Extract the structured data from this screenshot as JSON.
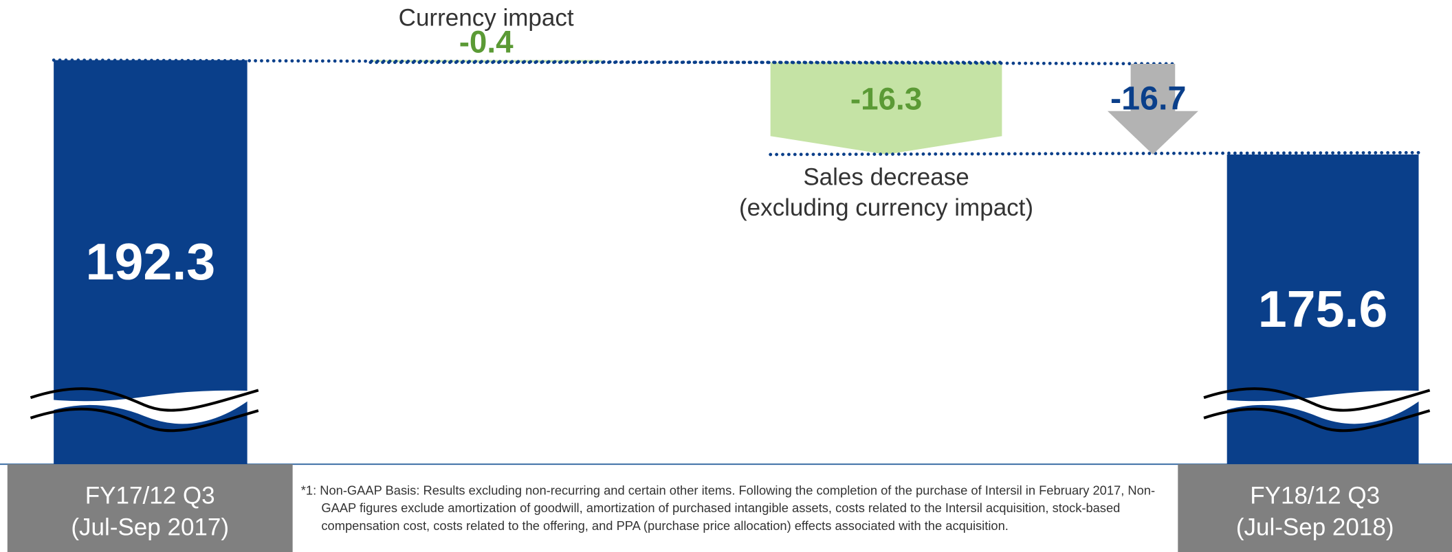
{
  "chart_data": {
    "type": "waterfall",
    "categories": [
      "FY17/12 Q3\n(Jul-Sep 2017)",
      "Currency impact",
      "Sales decrease\n(excluding currency impact)",
      "FY18/12 Q3\n(Jul-Sep 2018)"
    ],
    "values": [
      192.3,
      -0.4,
      -16.3,
      175.6
    ],
    "kinds": [
      "total",
      "delta",
      "delta",
      "total"
    ],
    "total_change": -16.7,
    "ylim": [
      120.8,
      192.3
    ],
    "axis_break": true,
    "colors": {
      "total": "#0a3f8a",
      "delta": "#c5e3a5",
      "delta_text": "#5b9a35",
      "change": "#b3b3b3",
      "change_text": "#0a3f8a",
      "label_box": "#808080"
    },
    "footnote": "*1: Non-GAAP Basis: Results excluding non-recurring and certain other items. Following the completion of the purchase of Intersil in February 2017, Non-GAAP figures exclude amortization of goodwill, amortization of purchased intangible assets, costs related to the Intersil acquisition, stock-based compensation cost, costs related to the offering, and PPA (purchase price allocation) effects associated with the acquisition."
  }
}
